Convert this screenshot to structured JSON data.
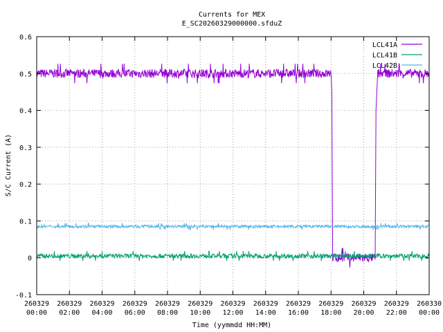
{
  "chart_data": {
    "type": "line",
    "title": "Currents for MEX",
    "subtitle": "E_SC20260329000000.sfduZ",
    "xlabel": "Time (yymmdd HH:MM)",
    "ylabel": "S/C Current (A)",
    "xlim": [
      0,
      24
    ],
    "ylim": [
      -0.1,
      0.6
    ],
    "grid": true,
    "legend_position": "top-right",
    "x_ticks": [
      {
        "date": "260329",
        "time": "00:00",
        "hour": 0
      },
      {
        "date": "260329",
        "time": "02:00",
        "hour": 2
      },
      {
        "date": "260329",
        "time": "04:00",
        "hour": 4
      },
      {
        "date": "260329",
        "time": "06:00",
        "hour": 6
      },
      {
        "date": "260329",
        "time": "08:00",
        "hour": 8
      },
      {
        "date": "260329",
        "time": "10:00",
        "hour": 10
      },
      {
        "date": "260329",
        "time": "12:00",
        "hour": 12
      },
      {
        "date": "260329",
        "time": "14:00",
        "hour": 14
      },
      {
        "date": "260329",
        "time": "16:00",
        "hour": 16
      },
      {
        "date": "260329",
        "time": "18:00",
        "hour": 18
      },
      {
        "date": "260329",
        "time": "20:00",
        "hour": 20
      },
      {
        "date": "260329",
        "time": "22:00",
        "hour": 22
      },
      {
        "date": "260330",
        "time": "00:00",
        "hour": 24
      }
    ],
    "y_ticks": [
      -0.1,
      0,
      0.1,
      0.2,
      0.3,
      0.4,
      0.5,
      0.6
    ],
    "series": [
      {
        "name": "LCL41A",
        "color": "#9400d3",
        "points": [
          [
            0,
            0.5
          ],
          [
            18,
            0.5
          ],
          [
            18.05,
            0.45
          ],
          [
            18.1,
            0.0
          ],
          [
            20.7,
            0.0
          ],
          [
            20.75,
            0.4
          ],
          [
            20.85,
            0.5
          ],
          [
            24,
            0.5
          ]
        ],
        "noise": 0.012,
        "style": "noisy"
      },
      {
        "name": "LCL41B",
        "color": "#009e73",
        "points": [
          [
            0,
            0.005
          ],
          [
            24,
            0.005
          ]
        ],
        "noise": 0.006,
        "style": "noisy"
      },
      {
        "name": "LCL42B",
        "color": "#56b4e9",
        "points": [
          [
            0,
            0.085
          ],
          [
            24,
            0.085
          ]
        ],
        "noise": 0.004,
        "style": "noisy"
      }
    ]
  }
}
